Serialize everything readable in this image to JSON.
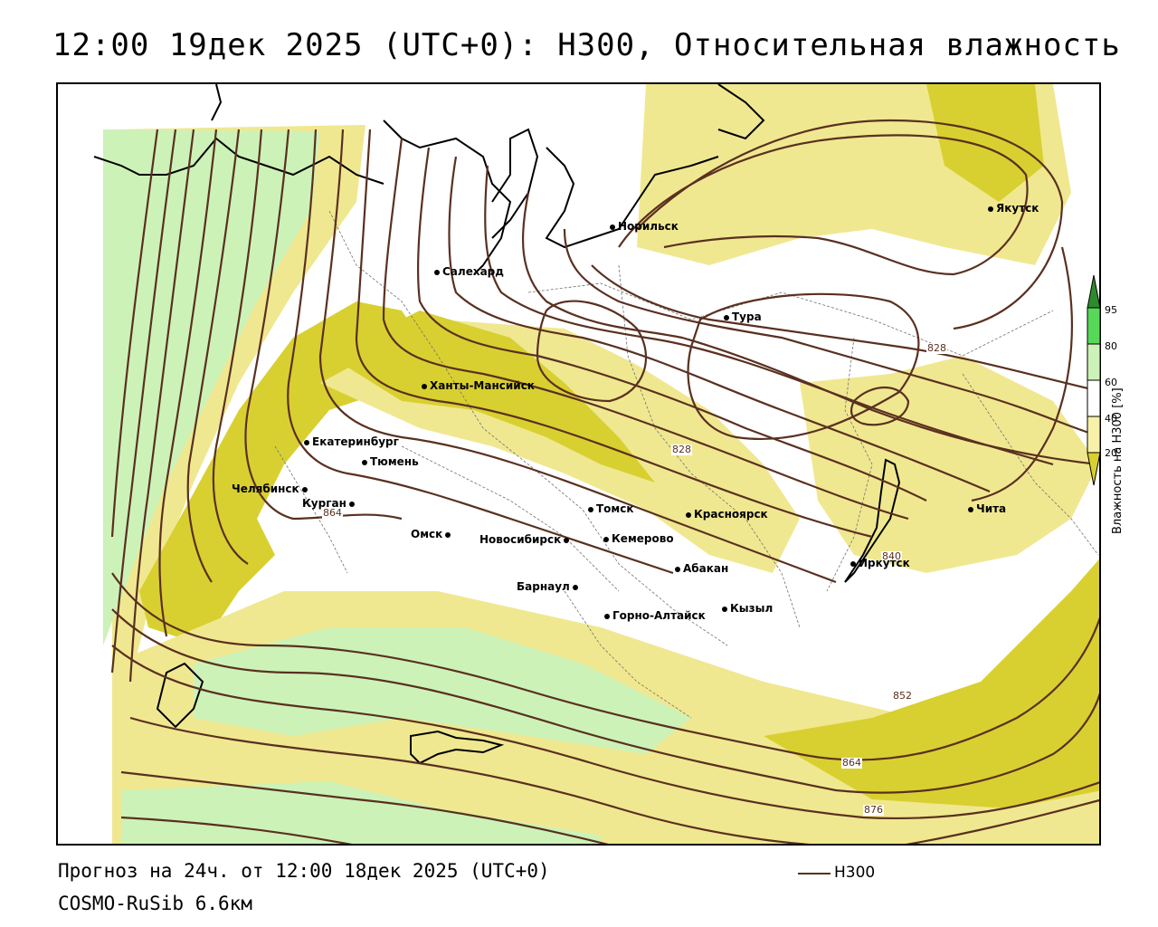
{
  "title": "12:00 19дек 2025 (UTC+0): H300, Относительная влажность",
  "footer": {
    "forecast": "Прогноз на 24ч. от 12:00 18дек 2025 (UTC+0)",
    "model": "COSMO-RuSib 6.6км",
    "line_legend": "H300"
  },
  "colors": {
    "h300": "#5a3020",
    "rh_20_40": "#f7f0a8",
    "rh_40_60": "#ffffff",
    "rh_60_80": "#cdf2b8",
    "rh_80_95": "#58d858",
    "rh_95": "#2c8c2c",
    "dry_low": "#d8d030",
    "dry_mid": "#f0e890"
  },
  "legend": {
    "title": "Влажность на H300 [%]",
    "ticks": [
      "95",
      "80",
      "60",
      "40",
      "20"
    ]
  },
  "isoline_labels": [
    "828",
    "828",
    "840",
    "852",
    "864",
    "864",
    "876"
  ],
  "cities": [
    "Норильск",
    "Якутск",
    "Салехард",
    "Тура",
    "Ханты-Мансийск",
    "Екатеринбург",
    "Тюмень",
    "Челябинск",
    "Курган",
    "Омск",
    "Новосибирск",
    "Томск",
    "Кемерово",
    "Красноярск",
    "Барнаул",
    "Абакан",
    "Горно-Алтайск",
    "Кызыл",
    "Иркутск",
    "Чита"
  ]
}
